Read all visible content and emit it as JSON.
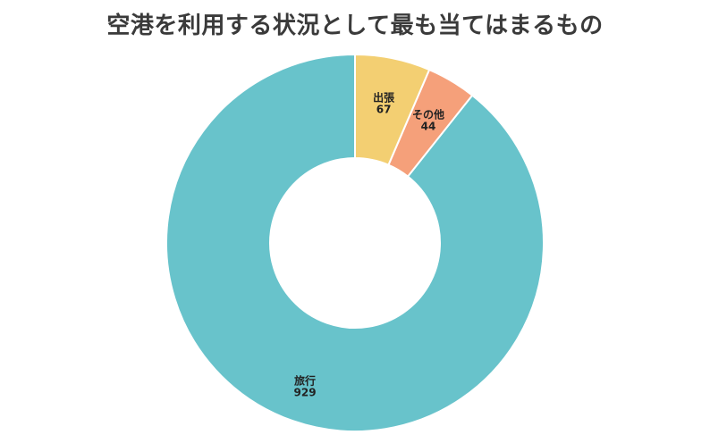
{
  "chart_data": {
    "type": "pie",
    "style": "donut",
    "title": "空港を利用する状況として最も当てはまるもの",
    "categories": [
      "旅行",
      "その他",
      "出張"
    ],
    "values": [
      929,
      44,
      67
    ],
    "colors": [
      "#68c3cb",
      "#f5a07a",
      "#f3cf72"
    ],
    "legend": "none"
  }
}
